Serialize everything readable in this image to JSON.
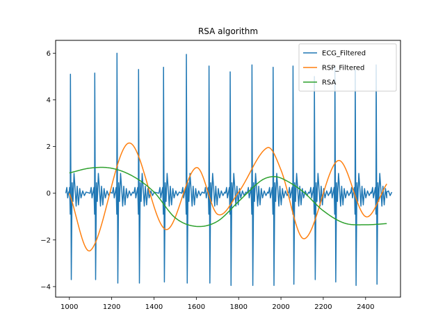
{
  "chart_data": {
    "type": "line",
    "title": "RSA algorithm",
    "xlabel": "",
    "ylabel": "",
    "xlim": [
      935,
      2565
    ],
    "ylim": [
      -4.45,
      6.55
    ],
    "xticks": [
      1000,
      1200,
      1400,
      1600,
      1800,
      2000,
      2200,
      2400
    ],
    "yticks": [
      -4,
      -2,
      0,
      2,
      4,
      6
    ],
    "grid": false,
    "legend_position": "top-right",
    "colors": {
      "ECG_Filtered": "#1f77b4",
      "RSP_Filtered": "#ff7f0e",
      "RSA": "#2ca02c"
    },
    "series": [
      {
        "name": "ECG_Filtered",
        "beats": [
          {
            "x": 1005,
            "peak": 5.1,
            "trough": -3.7
          },
          {
            "x": 1120,
            "peak": 5.15,
            "trough": -3.7
          },
          {
            "x": 1225,
            "peak": 6.0,
            "trough": -3.85
          },
          {
            "x": 1327,
            "peak": 5.3,
            "trough": -3.85
          },
          {
            "x": 1445,
            "peak": 5.4,
            "trough": -3.8
          },
          {
            "x": 1553,
            "peak": 5.95,
            "trough": -3.85
          },
          {
            "x": 1660,
            "peak": 5.45,
            "trough": -3.85
          },
          {
            "x": 1760,
            "peak": 5.2,
            "trough": -3.95
          },
          {
            "x": 1863,
            "peak": 5.5,
            "trough": -3.95
          },
          {
            "x": 1963,
            "peak": 5.4,
            "trough": -3.95
          },
          {
            "x": 2057,
            "peak": 5.45,
            "trough": -3.9
          },
          {
            "x": 2158,
            "peak": 5.0,
            "trough": -3.7
          },
          {
            "x": 2255,
            "peak": 5.45,
            "trough": -3.8
          },
          {
            "x": 2351,
            "peak": 5.3,
            "trough": -3.95
          },
          {
            "x": 2450,
            "peak": 5.5,
            "trough": -3.9
          }
        ]
      },
      {
        "name": "RSP_Filtered",
        "x": [
          1000,
          1100,
          1280,
          1455,
          1600,
          1700,
          1800,
          1935,
          2000,
          2110,
          2270,
          2400,
          2500
        ],
        "values": [
          0.0,
          -2.45,
          2.15,
          -1.55,
          1.1,
          -0.9,
          0.05,
          1.95,
          1.0,
          -1.95,
          1.4,
          -1.0,
          0.4
        ]
      },
      {
        "name": "RSA",
        "x": [
          1000,
          1100,
          1200,
          1300,
          1400,
          1500,
          1600,
          1700,
          1800,
          1900,
          1950,
          2000,
          2100,
          2200,
          2300,
          2400,
          2500
        ],
        "values": [
          0.87,
          1.08,
          1.07,
          0.73,
          0.05,
          -1.05,
          -1.42,
          -1.2,
          -0.35,
          0.5,
          0.7,
          0.65,
          0.1,
          -0.75,
          -1.28,
          -1.35,
          -1.3
        ]
      }
    ]
  }
}
